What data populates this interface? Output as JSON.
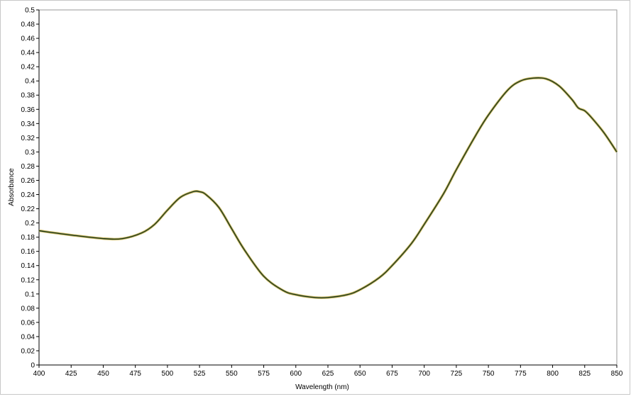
{
  "chart_data": {
    "type": "line",
    "title": "",
    "xlabel": "Wavelength (nm)",
    "ylabel": "Absorbance",
    "xlim": [
      400,
      850
    ],
    "ylim": [
      0,
      0.5
    ],
    "grid": false,
    "legend": "none",
    "x_ticks": [
      400,
      425,
      450,
      475,
      500,
      525,
      550,
      575,
      600,
      625,
      650,
      675,
      700,
      725,
      750,
      775,
      800,
      825,
      850
    ],
    "x_tick_labels": [
      "400",
      "425",
      "450",
      "475",
      "500",
      "525",
      "550",
      "575",
      "600",
      "625",
      "650",
      "675",
      "700",
      "725",
      "750",
      "775",
      "800",
      "825",
      "850"
    ],
    "y_ticks": [
      0,
      0.02,
      0.04,
      0.06,
      0.08,
      0.1,
      0.12,
      0.14,
      0.16,
      0.18,
      0.2,
      0.22,
      0.24,
      0.26,
      0.28,
      0.3,
      0.32,
      0.34,
      0.36,
      0.38,
      0.4,
      0.42,
      0.44,
      0.46,
      0.48,
      0.5
    ],
    "y_tick_labels": [
      "0",
      "0.02",
      "0.04",
      "0.06",
      "0.08",
      "0.1",
      "0.12",
      "0.14",
      "0.16",
      "0.18",
      "0.2",
      "0.22",
      "0.24",
      "0.26",
      "0.28",
      "0.3",
      "0.32",
      "0.34",
      "0.36",
      "0.38",
      "0.4",
      "0.42",
      "0.44",
      "0.46",
      "0.48",
      "0.5"
    ],
    "series": [
      {
        "color": "#1e3a1e",
        "highlight_color": "#c8b45a",
        "x": [
          400,
          425,
          450,
          465,
          480,
          490,
          500,
          510,
          520,
          525,
          530,
          540,
          550,
          560,
          575,
          590,
          600,
          615,
          625,
          640,
          650,
          665,
          675,
          690,
          700,
          715,
          725,
          740,
          750,
          765,
          775,
          785,
          795,
          805,
          815,
          820,
          825,
          830,
          840,
          850
        ],
        "y": [
          0.189,
          0.183,
          0.178,
          0.178,
          0.186,
          0.198,
          0.218,
          0.236,
          0.244,
          0.244,
          0.24,
          0.222,
          0.192,
          0.162,
          0.125,
          0.105,
          0.099,
          0.095,
          0.095,
          0.099,
          0.106,
          0.123,
          0.14,
          0.171,
          0.198,
          0.241,
          0.275,
          0.323,
          0.352,
          0.387,
          0.4,
          0.404,
          0.403,
          0.393,
          0.374,
          0.362,
          0.358,
          0.349,
          0.327,
          0.3
        ]
      }
    ]
  }
}
